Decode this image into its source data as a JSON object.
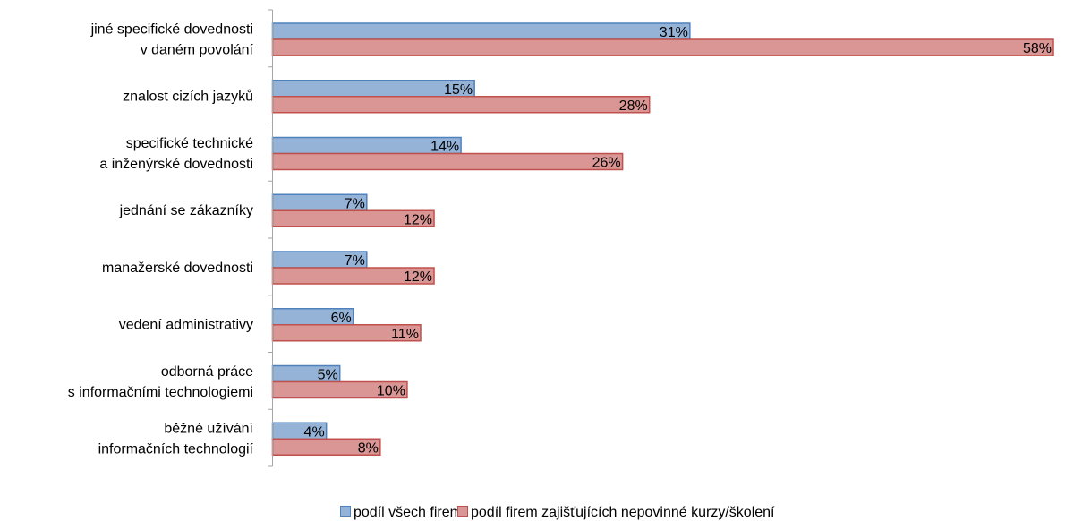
{
  "colors": {
    "series_1_fill": "#95b3d7",
    "series_1_stroke": "#4f81bd",
    "series_2_fill": "#d99694",
    "series_2_stroke": "#c0504d",
    "axis": "#a6a6a6"
  },
  "chart_data": {
    "type": "bar",
    "orientation": "horizontal",
    "title": "",
    "xlabel": "",
    "ylabel": "",
    "xlim": [
      0,
      58
    ],
    "grid": false,
    "legend_position": "bottom",
    "value_format": "percent",
    "categories": [
      [
        "jiné specifické dovednosti",
        "v daném povolání"
      ],
      [
        "znalost cizích jazyků"
      ],
      [
        "specifické technické",
        "a inženýrské dovednosti"
      ],
      [
        "jednání se zákazníky"
      ],
      [
        "manažerské dovednosti"
      ],
      [
        "vedení administrativy"
      ],
      [
        "odborná práce",
        "s informačními technologiemi"
      ],
      [
        "běžné užívání",
        "informačních technologií"
      ]
    ],
    "series": [
      {
        "name": "podíl všech firem",
        "values": [
          31,
          15,
          14,
          7,
          7,
          6,
          5,
          4
        ],
        "labels": [
          "31%",
          "15%",
          "14%",
          "7%",
          "7%",
          "6%",
          "5%",
          "4%"
        ]
      },
      {
        "name": "podíl firem zajišťujících nepovinné kurzy/školení",
        "values": [
          58,
          28,
          26,
          12,
          12,
          11,
          10,
          8
        ],
        "labels": [
          "58%",
          "28%",
          "26%",
          "12%",
          "12%",
          "11%",
          "10%",
          "8%"
        ]
      }
    ]
  }
}
